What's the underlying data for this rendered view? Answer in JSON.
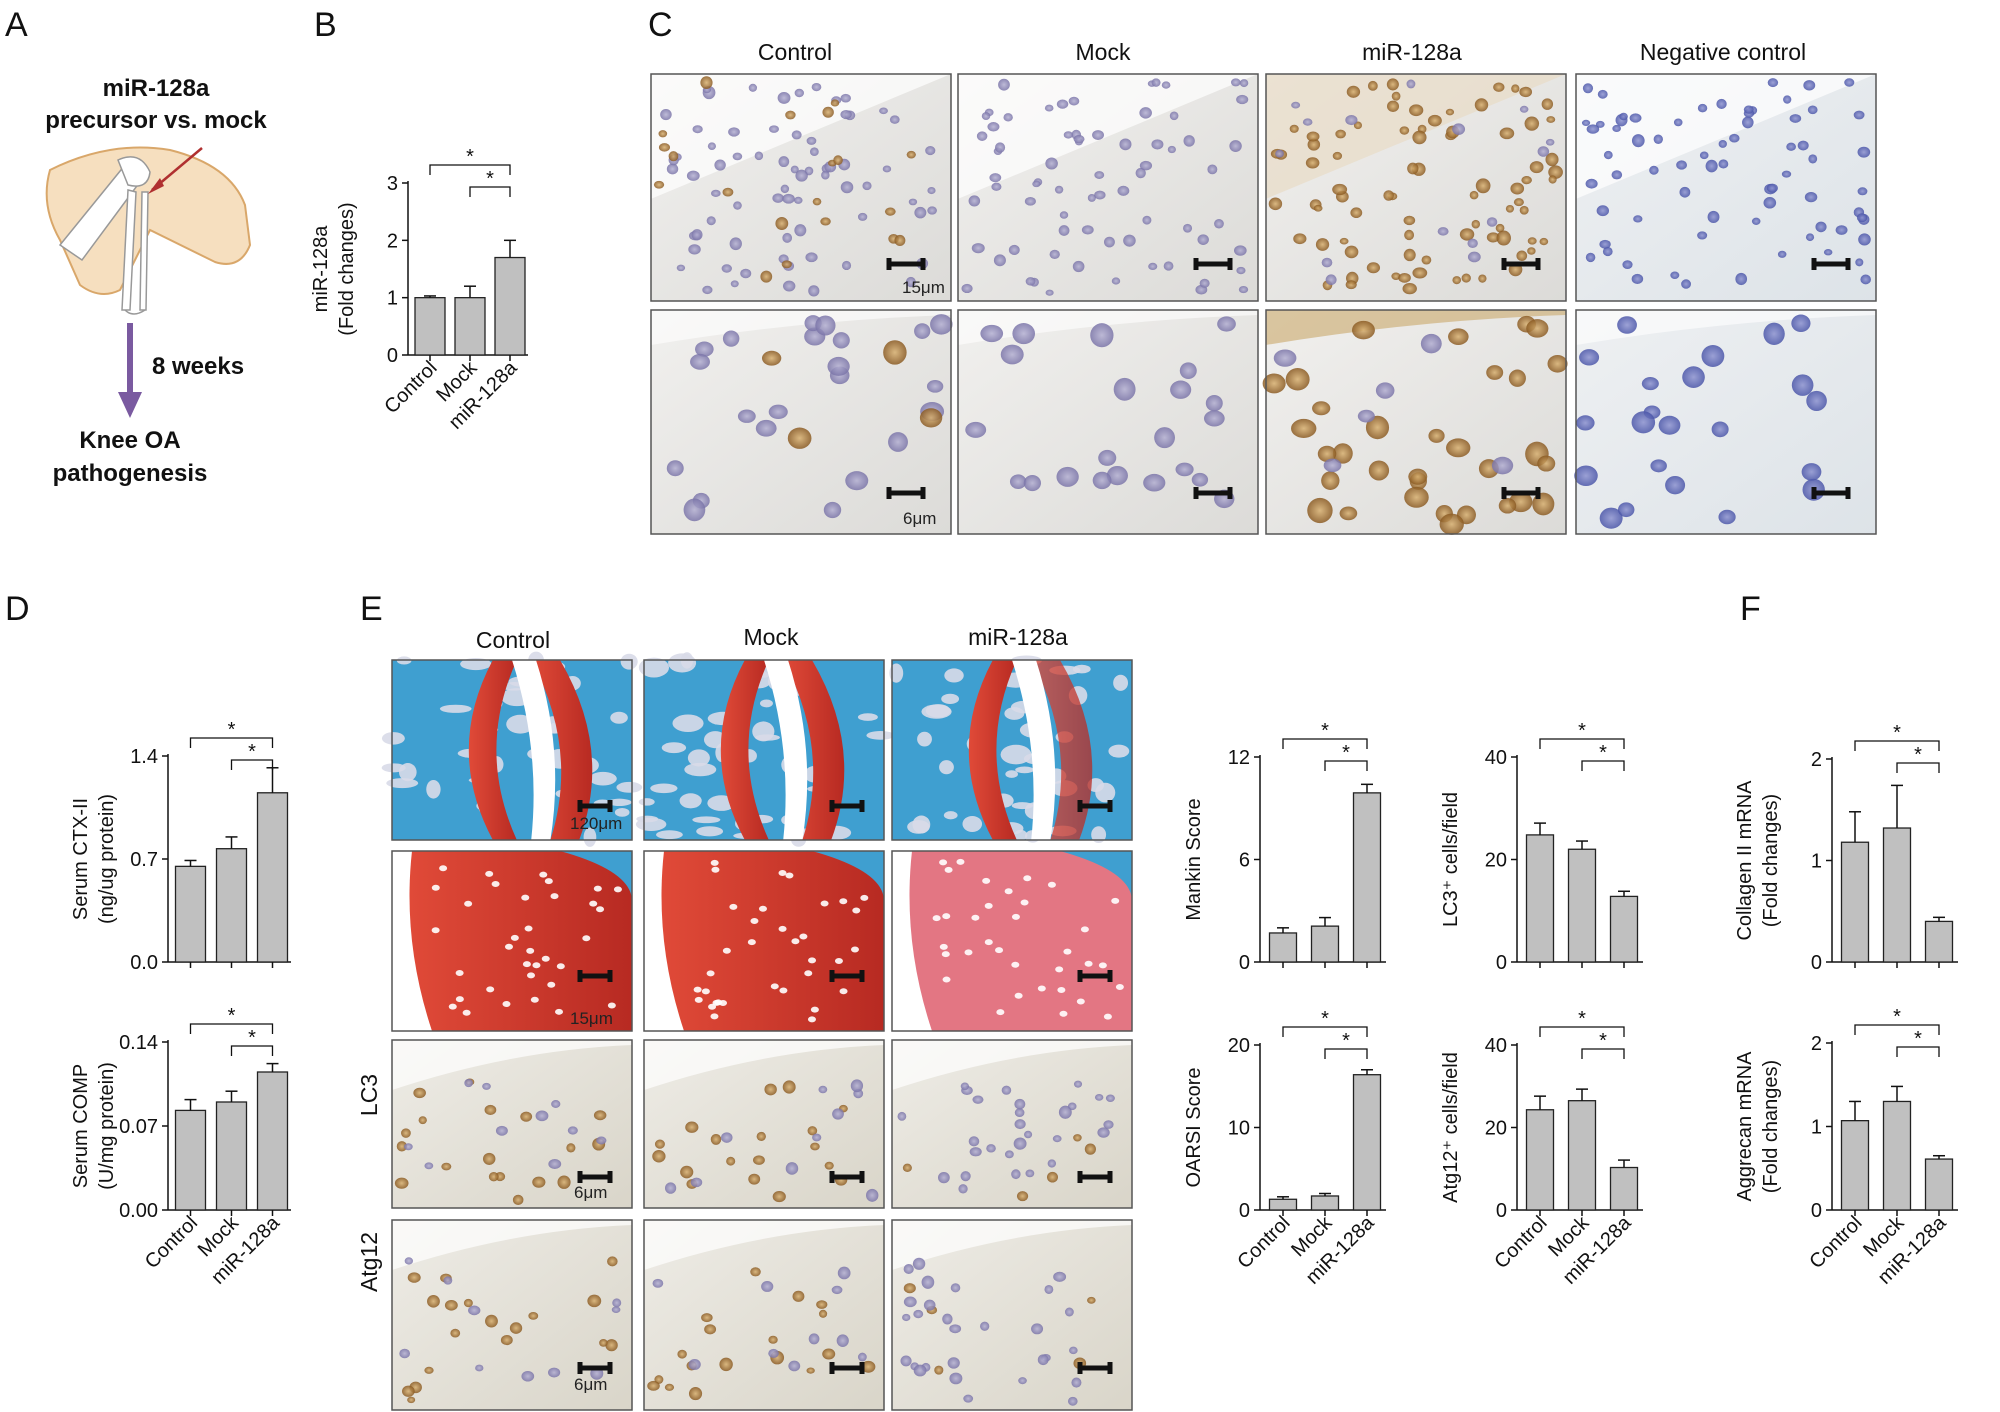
{
  "panels": {
    "A": {
      "letter": "A",
      "line1": "miR-128a",
      "line2": "precursor vs. mock",
      "duration": "8 weeks",
      "outcome1": "Knee OA",
      "outcome2": "pathogenesis"
    },
    "B": {
      "letter": "B"
    },
    "C": {
      "letter": "C",
      "columns": [
        "Control",
        "Mock",
        "miR-128a",
        "Negative control"
      ],
      "scale_top": "15μm",
      "scale_bottom": "6μm"
    },
    "D": {
      "letter": "D"
    },
    "E": {
      "letter": "E",
      "columns": [
        "Control",
        "Mock",
        "miR-128a"
      ],
      "row_labels": [
        "LC3",
        "Atg12"
      ],
      "scale_row1": "120μm",
      "scale_row2": "15μm",
      "scale_row3": "6μm",
      "scale_row4": "6μm"
    },
    "F": {
      "letter": "F"
    }
  },
  "colors": {
    "bar": "#c0c0c0",
    "bar_edge": "#222222",
    "safranin_red": "#c8332a",
    "fast_green": "#3f9fd0",
    "ihc_blue": "#4a55a8",
    "ihc_brown": "#a87a3a"
  },
  "significance": "*",
  "chart_data": [
    {
      "id": "B",
      "type": "bar",
      "categories": [
        "Control",
        "Mock",
        "miR-128a"
      ],
      "values": [
        1.0,
        1.0,
        1.7
      ],
      "errors": [
        0.03,
        0.2,
        0.3
      ],
      "ylabel": [
        "miR-128a",
        "(Fold changes)"
      ],
      "ylim": [
        0,
        3
      ],
      "yticks": [
        "0",
        "1",
        "2",
        "3"
      ],
      "significance": [
        [
          0,
          2
        ],
        [
          1,
          2
        ]
      ]
    },
    {
      "id": "D1",
      "type": "bar",
      "categories": [
        "Control",
        "Mock",
        "miR-128a"
      ],
      "values": [
        0.65,
        0.77,
        1.15
      ],
      "errors": [
        0.04,
        0.08,
        0.17
      ],
      "ylabel": [
        "Serum CTX-II",
        "(ng/ug protein)"
      ],
      "ylim": [
        0,
        1.4
      ],
      "yticks": [
        "0.0",
        "0.7",
        "1.4"
      ],
      "significance": [
        [
          0,
          2
        ],
        [
          1,
          2
        ]
      ]
    },
    {
      "id": "D2",
      "type": "bar",
      "categories": [
        "Control",
        "Mock",
        "miR-128a"
      ],
      "values": [
        0.083,
        0.09,
        0.115
      ],
      "errors": [
        0.009,
        0.009,
        0.007
      ],
      "ylabel": [
        "Serum COMP",
        "(U/mg protein)"
      ],
      "ylim": [
        0,
        0.14
      ],
      "yticks": [
        "0.00",
        "0.07",
        "0.14"
      ],
      "significance": [
        [
          0,
          2
        ],
        [
          1,
          2
        ]
      ]
    },
    {
      "id": "E1",
      "type": "bar",
      "categories": [
        "Control",
        "Mock",
        "miR-128a"
      ],
      "values": [
        1.7,
        2.1,
        9.9
      ],
      "errors": [
        0.3,
        0.5,
        0.5
      ],
      "ylabel": [
        "Mankin Score"
      ],
      "ylim": [
        0,
        12
      ],
      "yticks": [
        "0",
        "6",
        "12"
      ],
      "significance": [
        [
          0,
          2
        ],
        [
          1,
          2
        ]
      ]
    },
    {
      "id": "E2",
      "type": "bar",
      "categories": [
        "Control",
        "Mock",
        "miR-128a"
      ],
      "values": [
        24.8,
        22.0,
        12.8
      ],
      "errors": [
        2.3,
        1.6,
        1.0
      ],
      "ylabel": [
        "LC3⁺ cells/field"
      ],
      "ylim": [
        0,
        40
      ],
      "yticks": [
        "0",
        "20",
        "40"
      ],
      "significance": [
        [
          0,
          2
        ],
        [
          1,
          2
        ]
      ]
    },
    {
      "id": "E3",
      "type": "bar",
      "categories": [
        "Control",
        "Mock",
        "miR-128a"
      ],
      "values": [
        1.3,
        1.7,
        16.4
      ],
      "errors": [
        0.3,
        0.3,
        0.6
      ],
      "ylabel": [
        "OARSI Score"
      ],
      "ylim": [
        0,
        20
      ],
      "yticks": [
        "0",
        "10",
        "20"
      ],
      "significance": [
        [
          0,
          2
        ],
        [
          1,
          2
        ]
      ]
    },
    {
      "id": "E4",
      "type": "bar",
      "categories": [
        "Control",
        "Mock",
        "miR-128a"
      ],
      "values": [
        24.3,
        26.5,
        10.3
      ],
      "errors": [
        3.3,
        2.8,
        1.8
      ],
      "ylabel": [
        "Atg12⁺ cells/field"
      ],
      "ylim": [
        0,
        40
      ],
      "yticks": [
        "0",
        "20",
        "40"
      ],
      "significance": [
        [
          0,
          2
        ],
        [
          1,
          2
        ]
      ]
    },
    {
      "id": "F1",
      "type": "bar",
      "categories": [
        "Control",
        "Mock",
        "miR-128a"
      ],
      "values": [
        1.18,
        1.32,
        0.4
      ],
      "errors": [
        0.3,
        0.42,
        0.04
      ],
      "ylabel": [
        "Collagen II mRNA",
        "(Fold changes)"
      ],
      "ylim": [
        0,
        2
      ],
      "yticks": [
        "0",
        "1",
        "2"
      ],
      "significance": [
        [
          0,
          2
        ],
        [
          1,
          2
        ]
      ]
    },
    {
      "id": "F2",
      "type": "bar",
      "categories": [
        "Control",
        "Mock",
        "miR-128a"
      ],
      "values": [
        1.07,
        1.3,
        0.61
      ],
      "errors": [
        0.23,
        0.18,
        0.04
      ],
      "ylabel": [
        "Aggrecan mRNA",
        "(Fold changes)"
      ],
      "ylim": [
        0,
        2
      ],
      "yticks": [
        "0",
        "1",
        "2"
      ],
      "significance": [
        [
          0,
          2
        ],
        [
          1,
          2
        ]
      ]
    }
  ]
}
